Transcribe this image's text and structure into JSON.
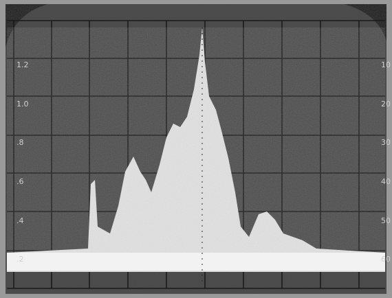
{
  "left_scale": [
    "1.2",
    "1.0",
    ".8",
    ".6",
    ".4",
    ".2"
  ],
  "right_scale": [
    "10",
    "20",
    "30",
    "40",
    "50",
    "60"
  ]
}
